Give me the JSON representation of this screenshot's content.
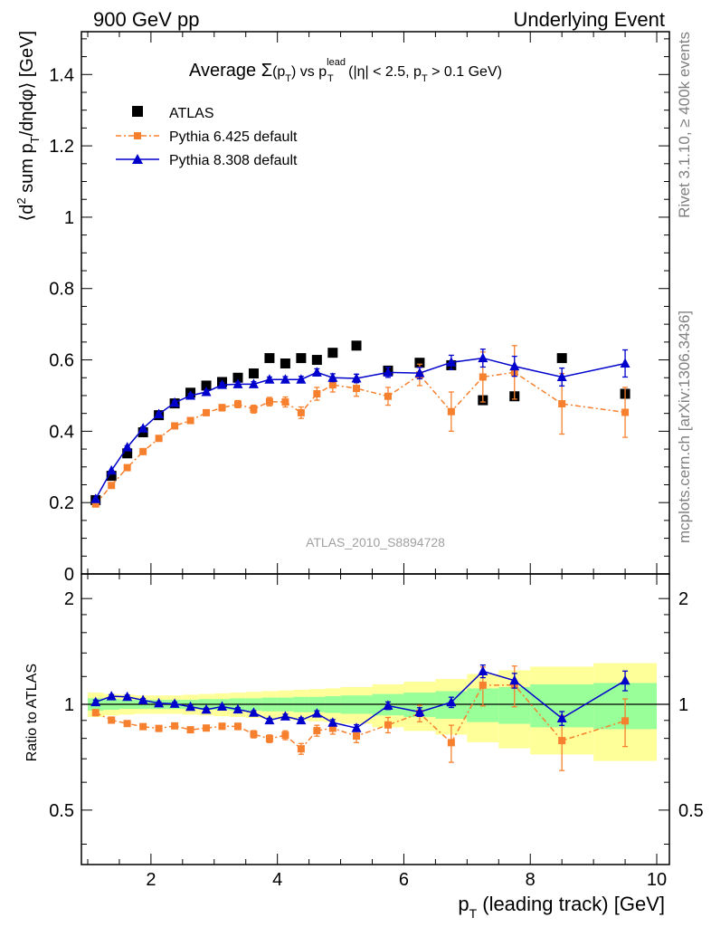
{
  "header": {
    "left": "900 GeV pp",
    "right": "Underlying Event"
  },
  "side_labels": {
    "top": "Rivet 3.1.10, ≥ 400k events",
    "bottom": "mcplots.cern.ch [arXiv:1306.3436]"
  },
  "colors": {
    "atlas": "#000000",
    "pythia6": "#f7802e",
    "pythia8": "#0000cc",
    "band_inner": "#99ff99",
    "band_outer": "#ffff99"
  },
  "chart_data": {
    "type": "scatter",
    "title_parts": {
      "prefix": "Average ",
      "sigma": "Σ",
      "sigma_arg": "(p",
      "sigma_sub": "T",
      "sigma_close": ")",
      "vs": " vs p",
      "lead_sup": "lead",
      "lead_sub": "T",
      "cuts_a": " (|η| < 2.5, p",
      "cuts_sub": "T",
      "cuts_b": " > 0.1 GeV)"
    },
    "analysis_id": "ATLAS_2010_S8894728",
    "ylabel_parts": {
      "a": "⟨d",
      "sup": "2",
      "b": " sum p",
      "sub": "T",
      "c": "/dηdφ⟩ [GeV]"
    },
    "xlabel_parts": {
      "a": "p",
      "sub": "T",
      "b": " (leading track) [GeV]"
    },
    "ratio_ylabel": "Ratio to ATLAS",
    "xlim": [
      0.9,
      10.2
    ],
    "ylim": [
      0,
      1.52
    ],
    "ratio_ylim": [
      0.35,
      2.35
    ],
    "ratio_log": true,
    "x_ticks": [
      "2",
      "4",
      "6",
      "8",
      "10"
    ],
    "y_ticks": [
      "0",
      "0.2",
      "0.4",
      "0.6",
      "0.8",
      "1",
      "1.2",
      "1.4"
    ],
    "ratio_ticks": [
      "0.5",
      "1",
      "2"
    ],
    "legend_position": "top-left",
    "x": [
      1.125,
      1.375,
      1.625,
      1.875,
      2.125,
      2.375,
      2.625,
      2.875,
      3.125,
      3.375,
      3.625,
      3.875,
      4.125,
      4.375,
      4.625,
      4.875,
      5.25,
      5.75,
      6.25,
      6.75,
      7.25,
      7.75,
      8.5,
      9.5
    ],
    "bin_edges": [
      1.0,
      1.25,
      1.5,
      1.75,
      2.0,
      2.25,
      2.5,
      2.75,
      3.0,
      3.25,
      3.5,
      3.75,
      4.0,
      4.25,
      4.5,
      4.75,
      5.0,
      5.5,
      6.0,
      6.5,
      7.0,
      7.5,
      8.0,
      9.0,
      10.0
    ],
    "series": [
      {
        "name": "ATLAS",
        "values": [
          0.207,
          0.275,
          0.338,
          0.397,
          0.445,
          0.478,
          0.508,
          0.528,
          0.538,
          0.55,
          0.562,
          0.605,
          0.59,
          0.605,
          0.6,
          0.62,
          0.64,
          0.57,
          0.592,
          0.585,
          0.487,
          0.498,
          0.605,
          0.505
        ],
        "rel_band_inner": [
          0.04,
          0.035,
          0.03,
          0.03,
          0.03,
          0.03,
          0.03,
          0.035,
          0.035,
          0.04,
          0.04,
          0.045,
          0.045,
          0.05,
          0.05,
          0.055,
          0.06,
          0.07,
          0.08,
          0.09,
          0.11,
          0.12,
          0.14,
          0.15
        ],
        "rel_band_outer": [
          0.08,
          0.07,
          0.065,
          0.06,
          0.06,
          0.06,
          0.065,
          0.07,
          0.075,
          0.08,
          0.085,
          0.09,
          0.095,
          0.1,
          0.105,
          0.11,
          0.12,
          0.14,
          0.16,
          0.18,
          0.22,
          0.25,
          0.28,
          0.31
        ]
      },
      {
        "name": "Pythia 6.425 default",
        "values": [
          0.196,
          0.248,
          0.298,
          0.343,
          0.38,
          0.415,
          0.43,
          0.452,
          0.466,
          0.476,
          0.462,
          0.483,
          0.482,
          0.452,
          0.505,
          0.53,
          0.52,
          0.498,
          0.558,
          0.455,
          0.552,
          0.565,
          0.477,
          0.453
        ],
        "errors": [
          0.004,
          0.005,
          0.005,
          0.006,
          0.006,
          0.007,
          0.007,
          0.008,
          0.009,
          0.01,
          0.011,
          0.012,
          0.014,
          0.016,
          0.018,
          0.02,
          0.022,
          0.025,
          0.03,
          0.055,
          0.07,
          0.075,
          0.085,
          0.07
        ]
      },
      {
        "name": "Pythia 8.308 default",
        "values": [
          0.21,
          0.29,
          0.355,
          0.408,
          0.448,
          0.48,
          0.5,
          0.51,
          0.53,
          0.532,
          0.532,
          0.545,
          0.545,
          0.545,
          0.565,
          0.55,
          0.548,
          0.565,
          0.563,
          0.593,
          0.605,
          0.582,
          0.552,
          0.59
        ],
        "errors": [
          0.003,
          0.003,
          0.004,
          0.004,
          0.004,
          0.005,
          0.005,
          0.005,
          0.006,
          0.006,
          0.007,
          0.007,
          0.008,
          0.009,
          0.01,
          0.011,
          0.012,
          0.014,
          0.016,
          0.02,
          0.025,
          0.028,
          0.025,
          0.038
        ]
      }
    ]
  }
}
